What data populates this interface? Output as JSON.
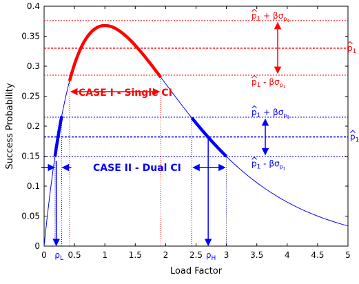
{
  "chart_data": {
    "type": "line",
    "xlabel": "Load Factor",
    "ylabel": "Success Probability",
    "xlim": [
      0,
      5
    ],
    "ylim": [
      0,
      0.4
    ],
    "x_ticks": [
      "0",
      "0.5",
      "1",
      "1.5",
      "2",
      "2.5",
      "3",
      "3.5",
      "4",
      "4.5",
      "5"
    ],
    "y_ticks": [
      "0",
      "0.05",
      "0.1",
      "0.15",
      "0.2",
      "0.25",
      "0.3",
      "0.35",
      "0.4"
    ],
    "curve": {
      "x": [
        0,
        0.05,
        0.1,
        0.15,
        0.2,
        0.25,
        0.3,
        0.35,
        0.4,
        0.45,
        0.5,
        0.55,
        0.6,
        0.65,
        0.7,
        0.75,
        0.8,
        0.85,
        0.9,
        0.95,
        1.0,
        1.05,
        1.1,
        1.15,
        1.2,
        1.25,
        1.3,
        1.35,
        1.4,
        1.45,
        1.5,
        1.55,
        1.6,
        1.65,
        1.7,
        1.75,
        1.8,
        1.85,
        1.9,
        1.95,
        2.0,
        2.1,
        2.2,
        2.3,
        2.4,
        2.5,
        2.6,
        2.7,
        2.8,
        2.9,
        3.0,
        3.1,
        3.2,
        3.3,
        3.4,
        3.5,
        3.6,
        3.7,
        3.8,
        3.9,
        4.0,
        4.1,
        4.2,
        4.3,
        4.4,
        4.5,
        4.6,
        4.7,
        4.8,
        4.9,
        5.0
      ],
      "y": [
        0,
        0.0476,
        0.0905,
        0.1291,
        0.1637,
        0.1947,
        0.2222,
        0.2466,
        0.2681,
        0.2869,
        0.3033,
        0.3174,
        0.3293,
        0.3394,
        0.3476,
        0.3543,
        0.3595,
        0.3633,
        0.3659,
        0.3674,
        0.3679,
        0.3675,
        0.3662,
        0.3643,
        0.3614,
        0.3581,
        0.3543,
        0.35,
        0.3452,
        0.3402,
        0.3347,
        0.329,
        0.323,
        0.3169,
        0.3106,
        0.3041,
        0.2975,
        0.2909,
        0.2842,
        0.2775,
        0.2707,
        0.2572,
        0.2438,
        0.2306,
        0.2177,
        0.2052,
        0.1931,
        0.1815,
        0.1703,
        0.1597,
        0.1494,
        0.1397,
        0.1304,
        0.1217,
        0.1135,
        0.1057,
        0.0984,
        0.0915,
        0.0851,
        0.079,
        0.0733,
        0.068,
        0.063,
        0.0584,
        0.0541,
        0.05,
        0.0462,
        0.0428,
        0.0395,
        0.0364,
        0.0337
      ]
    },
    "case1": {
      "label": "CASE I - Single CI",
      "p_hat": 0.33,
      "upper": 0.376,
      "lower": 0.285,
      "x_range": [
        0.42,
        1.92
      ]
    },
    "case2": {
      "label": "CASE II - Dual CI",
      "p_hat": 0.182,
      "upper": 0.215,
      "lower": 0.149,
      "x_low_range": [
        0.18,
        0.29
      ],
      "x_high_range": [
        2.43,
        3.0
      ],
      "rho_L": 0.2,
      "rho_H": 2.7
    },
    "colors": {
      "curve": "#0000ff",
      "case1": "#ff0000",
      "case2": "#0000ff",
      "vline1": "#ff0000",
      "vline2": "#000080"
    },
    "annotations": {
      "p_hat": "p",
      "p_sub": "1",
      "plus": " + βσ",
      "minus": " - βσ",
      "sigma_sub": "p",
      "sigma_subsub": "1",
      "rho": "ρ",
      "rho_L_sub": "L",
      "rho_H_sub": "H"
    }
  }
}
